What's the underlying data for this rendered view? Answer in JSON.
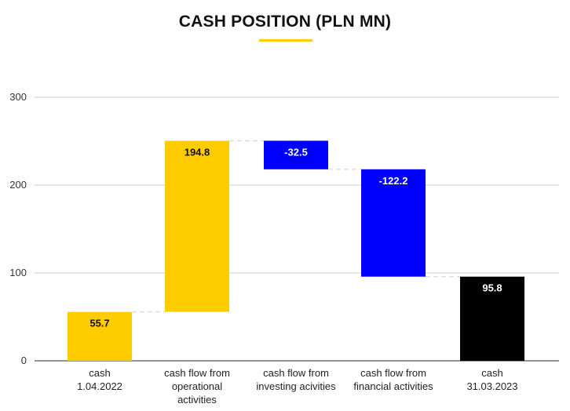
{
  "chart_data": {
    "type": "waterfall",
    "title": "CASH POSITION (PLN MN)",
    "categories": [
      [
        "cash",
        "1.04.2022"
      ],
      [
        "cash flow from",
        "operational",
        "activities"
      ],
      [
        "cash flow from",
        "investing acivities"
      ],
      [
        "cash flow from",
        "financial activities"
      ],
      [
        "cash",
        "31.03.2023"
      ]
    ],
    "values": [
      55.7,
      194.8,
      -32.5,
      -122.2,
      95.8
    ],
    "value_labels": [
      "55.7",
      "194.8",
      "-32.5",
      "-122.2",
      "95.8"
    ],
    "kinds": [
      "total",
      "delta",
      "delta",
      "delta",
      "total"
    ],
    "bar_colors": [
      "#FFCC00",
      "#FFCC00",
      "#0000FF",
      "#0000FF",
      "#000000"
    ],
    "label_colors": [
      "#111111",
      "#111111",
      "#FFFFFF",
      "#FFFFFF",
      "#FFFFFF"
    ],
    "y_ticks": [
      0,
      100,
      200,
      300
    ],
    "ylim": [
      0,
      300
    ],
    "grid": true,
    "legend": "none",
    "accent_color": "#FFCC00",
    "connector_color": "#DDDDDD"
  }
}
